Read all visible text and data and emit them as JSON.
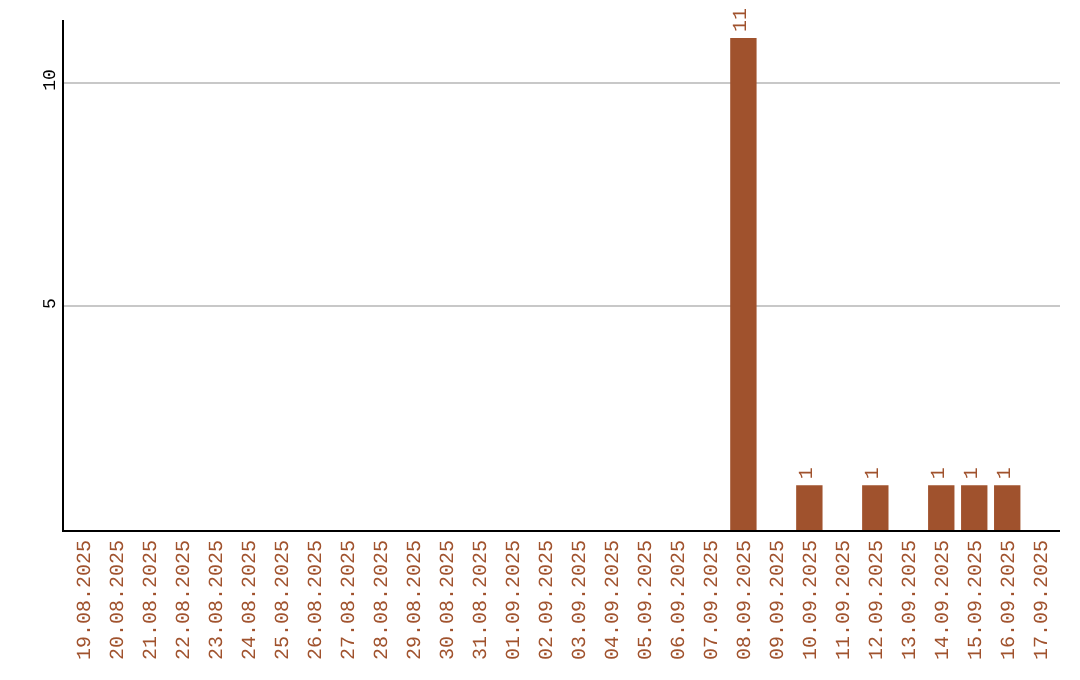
{
  "chart_data": {
    "type": "bar",
    "categories": [
      "19.08.2025",
      "20.08.2025",
      "21.08.2025",
      "22.08.2025",
      "23.08.2025",
      "24.08.2025",
      "25.08.2025",
      "26.08.2025",
      "27.08.2025",
      "28.08.2025",
      "29.08.2025",
      "30.08.2025",
      "31.08.2025",
      "01.09.2025",
      "02.09.2025",
      "03.09.2025",
      "04.09.2025",
      "05.09.2025",
      "06.09.2025",
      "07.09.2025",
      "08.09.2025",
      "09.09.2025",
      "10.09.2025",
      "11.09.2025",
      "12.09.2025",
      "13.09.2025",
      "14.09.2025",
      "15.09.2025",
      "16.09.2025",
      "17.09.2025"
    ],
    "values": [
      0,
      0,
      0,
      0,
      0,
      0,
      0,
      0,
      0,
      0,
      0,
      0,
      0,
      0,
      0,
      0,
      0,
      0,
      0,
      0,
      11,
      0,
      1,
      0,
      1,
      0,
      1,
      1,
      1,
      0
    ],
    "value_labels": [
      null,
      null,
      null,
      null,
      null,
      null,
      null,
      null,
      null,
      null,
      null,
      null,
      null,
      null,
      null,
      null,
      null,
      null,
      null,
      null,
      "11",
      null,
      "1",
      null,
      "1",
      null,
      "1",
      "1",
      "1",
      null
    ],
    "color": "#a0522d",
    "ylim": [
      0,
      11.4
    ],
    "yticks": [
      5,
      10
    ],
    "grid": "y"
  }
}
